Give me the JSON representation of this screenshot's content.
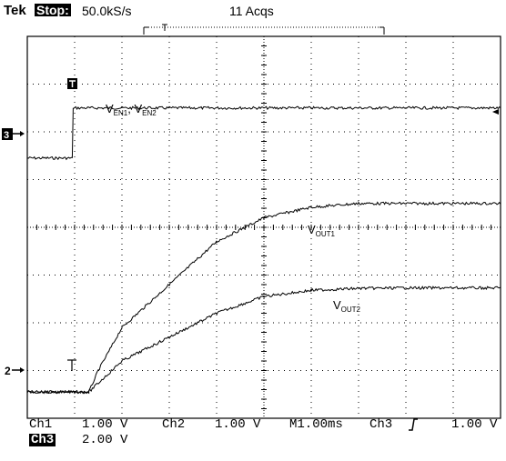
{
  "header": {
    "brand": "Tek",
    "state": "Stop:",
    "sample_rate": "50.0kS/s",
    "acquisitions": "11 Acqs"
  },
  "markers": {
    "ch3_marker": "3",
    "ch2_marker": "2",
    "trigger_marker": "T"
  },
  "annotations": {
    "ven": "V",
    "ven_sub1": "EN1",
    "ven_sep": ", V",
    "ven_sub2": "EN2",
    "vout1": "V",
    "vout1_sub": "OUT1",
    "vout2": "V",
    "vout2_sub": "OUT2"
  },
  "footer": {
    "ch1_label": "Ch1",
    "ch1_scale": "1.00 V",
    "ch2_label": "Ch2",
    "ch2_scale": "1.00 V",
    "timebase": "M1.00ms",
    "trig_source": "Ch3",
    "trig_slope_icon": "rising-edge-icon",
    "trig_level": "1.00 V",
    "ch3_label": "Ch3",
    "ch3_scale": "2.00 V"
  },
  "chart_data": {
    "type": "line",
    "xlabel": "",
    "ylabel": "",
    "x_unit_per_div": "1.00ms",
    "xlim_div": [
      0,
      10
    ],
    "ylim_div": [
      -4,
      4
    ],
    "grid": true,
    "series": [
      {
        "name": "VEN1, VEN2",
        "channel": "Ch3",
        "points_div": [
          [
            0,
            1.45
          ],
          [
            0.95,
            1.45
          ],
          [
            0.97,
            2.5
          ],
          [
            1.0,
            2.5
          ],
          [
            10,
            2.5
          ]
        ]
      },
      {
        "name": "VOUT1",
        "channel": "Ch1",
        "points_div": [
          [
            0,
            -3.45
          ],
          [
            1.3,
            -3.45
          ],
          [
            1.5,
            -3.0
          ],
          [
            2.0,
            -2.1
          ],
          [
            3.0,
            -1.2
          ],
          [
            4.0,
            -0.3
          ],
          [
            5.0,
            0.2
          ],
          [
            6.0,
            0.42
          ],
          [
            7.0,
            0.5
          ],
          [
            8.0,
            0.5
          ],
          [
            10,
            0.5
          ]
        ]
      },
      {
        "name": "VOUT2",
        "channel": "Ch2",
        "points_div": [
          [
            0,
            -3.45
          ],
          [
            1.3,
            -3.45
          ],
          [
            2.0,
            -2.8
          ],
          [
            3.0,
            -2.3
          ],
          [
            4.0,
            -1.8
          ],
          [
            5.0,
            -1.45
          ],
          [
            6.0,
            -1.32
          ],
          [
            7.0,
            -1.28
          ],
          [
            8.0,
            -1.27
          ],
          [
            10,
            -1.27
          ]
        ]
      }
    ]
  }
}
